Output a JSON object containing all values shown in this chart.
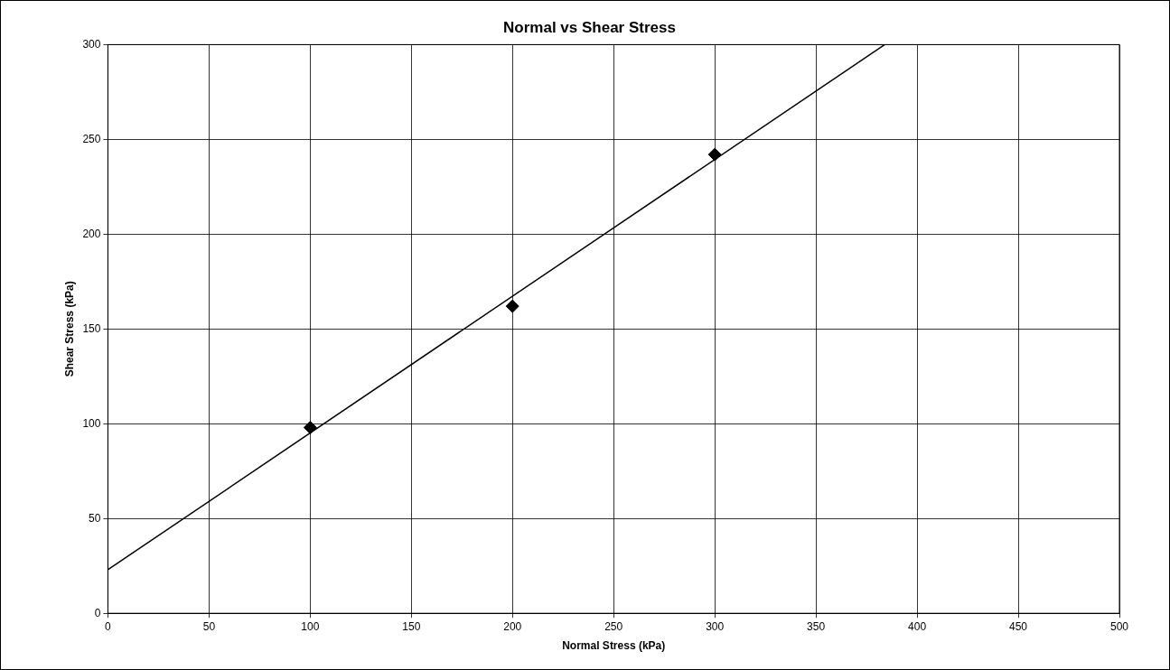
{
  "chart_data": {
    "type": "scatter",
    "title": "Normal vs Shear Stress",
    "xlabel": "Normal Stress (kPa)",
    "ylabel": "Shear Stress (kPa)",
    "series": [
      {
        "type": "scatter",
        "color": "#000000",
        "marker": "diamond",
        "x": [
          100,
          200,
          300
        ],
        "values": [
          98,
          162,
          242
        ]
      },
      {
        "type": "line",
        "color": "#000000",
        "marker": "none",
        "line_style": "solid",
        "x": [
          0,
          384
        ],
        "values": [
          23,
          300
        ]
      }
    ],
    "xlim": [
      0,
      500
    ],
    "xticks": [
      0,
      50,
      100,
      150,
      200,
      250,
      300,
      350,
      400,
      450,
      500
    ],
    "ylim": [
      0,
      300
    ],
    "yticks": [
      0,
      50,
      100,
      150,
      200,
      250,
      300
    ],
    "grid": true,
    "legend": false
  }
}
